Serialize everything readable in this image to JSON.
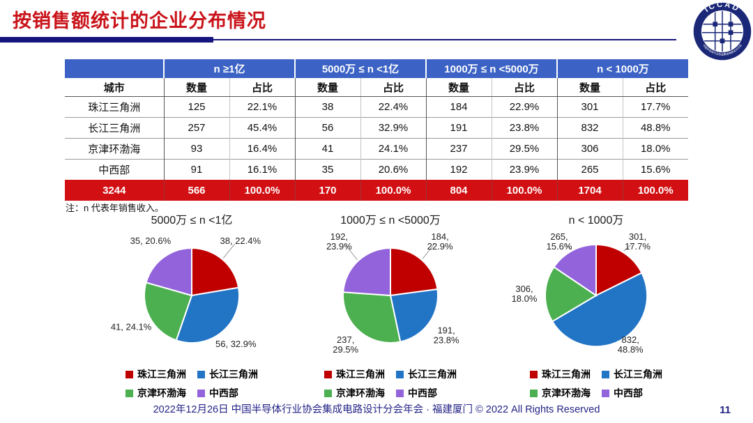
{
  "page": {
    "title": "按销售额统计的企业分布情况",
    "note": "注：n 代表年销售收入。",
    "footer": "2022年12月26日 中国半导体行业协会集成电路设计分会年会 · 福建厦门 © 2022 All Rights Reserved",
    "page_number": "11",
    "logo_title": "ICCAD",
    "logo_ring_text": "中国半导体行业协会集成电路设计分会"
  },
  "colors": {
    "title_red": "#c9131a",
    "header_blue": "#3b62c4",
    "total_row_red": "#d21014",
    "divider_navy": "#15157d",
    "footer_navy": "#232387",
    "region_red": "#c00000",
    "region_blue": "#2274c5",
    "region_green": "#4caf50",
    "region_purple": "#9263db"
  },
  "table": {
    "city_header": "城市",
    "sub_headers": [
      "数量",
      "占比"
    ],
    "groups": [
      "n ≥1亿",
      "5000万 ≤ n <1亿",
      "1000万 ≤ n <5000万",
      "n < 1000万"
    ],
    "rows": [
      {
        "city": "珠江三角洲",
        "cells": [
          "125",
          "22.1%",
          "38",
          "22.4%",
          "184",
          "22.9%",
          "301",
          "17.7%"
        ]
      },
      {
        "city": "长江三角洲",
        "cells": [
          "257",
          "45.4%",
          "56",
          "32.9%",
          "191",
          "23.8%",
          "832",
          "48.8%"
        ]
      },
      {
        "city": "京津环渤海",
        "cells": [
          "93",
          "16.4%",
          "41",
          "24.1%",
          "237",
          "29.5%",
          "306",
          "18.0%"
        ]
      },
      {
        "city": "中西部",
        "cells": [
          "91",
          "16.1%",
          "35",
          "20.6%",
          "192",
          "23.9%",
          "265",
          "15.6%"
        ]
      }
    ],
    "total_row": {
      "city": "3244",
      "cells": [
        "566",
        "100.0%",
        "170",
        "100.0%",
        "804",
        "100.0%",
        "1704",
        "100.0%"
      ]
    }
  },
  "legend": {
    "items": [
      {
        "label": "珠江三角洲",
        "color": "#c00000"
      },
      {
        "label": "长江三角洲",
        "color": "#2274c5"
      },
      {
        "label": "京津环渤海",
        "color": "#4caf50"
      },
      {
        "label": "中西部",
        "color": "#9263db"
      }
    ]
  },
  "chart_data": [
    {
      "type": "pie",
      "title": "5000万 ≤ n <1亿",
      "categories": [
        "珠江三角洲",
        "长江三角洲",
        "京津环渤海",
        "中西部"
      ],
      "values": [
        38,
        56,
        41,
        35
      ],
      "percent_labels": [
        "22.4%",
        "32.9%",
        "24.1%",
        "20.6%"
      ],
      "colors": [
        "#c00000",
        "#2274c5",
        "#4caf50",
        "#9263db"
      ],
      "legend_position": "bottom",
      "start_angle_deg": 0,
      "direction": "clockwise",
      "label_style": "one-line",
      "leader_lines": [
        true,
        false,
        false,
        false
      ]
    },
    {
      "type": "pie",
      "title": "1000万 ≤ n <5000万",
      "categories": [
        "珠江三角洲",
        "长江三角洲",
        "京津环渤海",
        "中西部"
      ],
      "values": [
        184,
        191,
        237,
        192
      ],
      "percent_labels": [
        "22.9%",
        "23.8%",
        "29.5%",
        "23.9%"
      ],
      "colors": [
        "#c00000",
        "#2274c5",
        "#4caf50",
        "#9263db"
      ],
      "legend_position": "bottom",
      "start_angle_deg": 0,
      "direction": "clockwise",
      "label_style": "two-line",
      "leader_lines": [
        true,
        false,
        false,
        true
      ]
    },
    {
      "type": "pie",
      "title": "n < 1000万",
      "categories": [
        "珠江三角洲",
        "长江三角洲",
        "京津环渤海",
        "中西部"
      ],
      "values": [
        301,
        832,
        306,
        265
      ],
      "percent_labels": [
        "17.7%",
        "48.8%",
        "18.0%",
        "15.6%"
      ],
      "colors": [
        "#c00000",
        "#2274c5",
        "#4caf50",
        "#9263db"
      ],
      "legend_position": "bottom",
      "start_angle_deg": 0,
      "direction": "clockwise",
      "label_style": "two-line",
      "leader_lines": [
        true,
        false,
        false,
        true
      ]
    }
  ]
}
